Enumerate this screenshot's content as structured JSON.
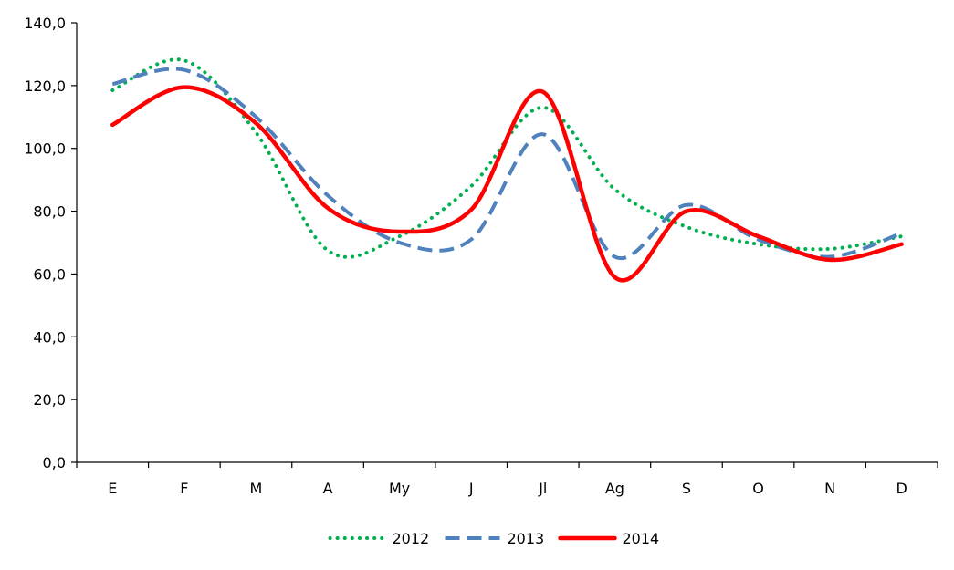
{
  "chart_data": {
    "type": "line",
    "title": "",
    "xlabel": "",
    "ylabel": "",
    "categories": [
      "E",
      "F",
      "M",
      "A",
      "My",
      "J",
      "Jl",
      "Ag",
      "S",
      "O",
      "N",
      "D"
    ],
    "ylim": [
      0,
      140
    ],
    "yticks": [
      {
        "value": 0,
        "label": "0,0"
      },
      {
        "value": 20,
        "label": "20,0"
      },
      {
        "value": 40,
        "label": "40,0"
      },
      {
        "value": 60,
        "label": "60,0"
      },
      {
        "value": 80,
        "label": "80,0"
      },
      {
        "value": 100,
        "label": "100,0"
      },
      {
        "value": 120,
        "label": "120,0"
      },
      {
        "value": 140,
        "label": "140,0"
      }
    ],
    "grid": false,
    "smooth": true,
    "legend_position": "bottom-center",
    "series": [
      {
        "name": "2012",
        "style": "dotted",
        "color": "#00b050",
        "values": [
          118.5,
          128.0,
          105.0,
          67.5,
          72.0,
          88.0,
          113.0,
          87.0,
          75.0,
          69.5,
          68.0,
          72.0
        ]
      },
      {
        "name": "2013",
        "style": "dashed",
        "color": "#4f81bd",
        "values": [
          120.5,
          125.0,
          110.0,
          85.0,
          70.0,
          71.0,
          104.5,
          65.5,
          82.0,
          71.0,
          65.5,
          73.0
        ]
      },
      {
        "name": "2014",
        "style": "solid",
        "color": "#ff0000",
        "values": [
          107.5,
          119.5,
          108.0,
          81.0,
          73.5,
          80.5,
          118.0,
          59.0,
          80.0,
          72.0,
          64.5,
          69.5
        ]
      }
    ]
  }
}
